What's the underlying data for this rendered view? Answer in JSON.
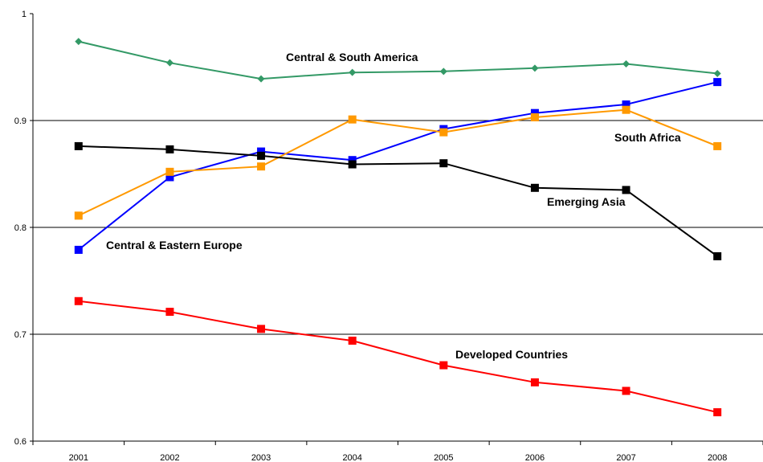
{
  "chart_data": {
    "type": "line",
    "title": "",
    "xlabel": "",
    "ylabel": "",
    "x": [
      "2001",
      "2002",
      "2003",
      "2004",
      "2005",
      "2006",
      "2007",
      "2008"
    ],
    "ylim": [
      0.6,
      1.0
    ],
    "yticks": [
      "0.6",
      "0.7",
      "0.8",
      "0.9",
      "1"
    ],
    "grid": "horizontal",
    "legend": "none (inline labels)",
    "series": [
      {
        "name": "Central & South America",
        "color": "#339966",
        "marker": "diamond",
        "values": [
          0.974,
          0.954,
          0.939,
          0.945,
          0.946,
          0.949,
          0.953,
          0.944
        ]
      },
      {
        "name": "Central & Eastern Europe",
        "color": "#0000FF",
        "marker": "square",
        "values": [
          0.779,
          0.847,
          0.871,
          0.863,
          0.892,
          0.907,
          0.915,
          0.936
        ]
      },
      {
        "name": "South Africa",
        "color": "#FF9900",
        "marker": "square",
        "values": [
          0.811,
          0.852,
          0.857,
          0.901,
          0.889,
          0.903,
          0.91,
          0.876
        ]
      },
      {
        "name": "Emerging Asia",
        "color": "#000000",
        "marker": "square",
        "values": [
          0.876,
          0.873,
          0.867,
          0.859,
          0.86,
          0.837,
          0.835,
          0.773
        ]
      },
      {
        "name": "Developed Countries",
        "color": "#FF0000",
        "marker": "square",
        "values": [
          0.731,
          0.721,
          0.705,
          0.694,
          0.671,
          0.655,
          0.647,
          0.627
        ]
      }
    ]
  }
}
